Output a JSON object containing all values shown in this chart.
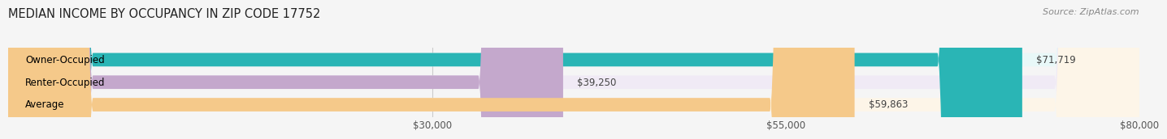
{
  "title": "MEDIAN INCOME BY OCCUPANCY IN ZIP CODE 17752",
  "source": "Source: ZipAtlas.com",
  "categories": [
    "Owner-Occupied",
    "Renter-Occupied",
    "Average"
  ],
  "values": [
    71719,
    39250,
    59863
  ],
  "bar_colors": [
    "#2ab5b5",
    "#c4a8cc",
    "#f5c98a"
  ],
  "bar_bg_colors": [
    "#e8f8f8",
    "#f0eaf5",
    "#fdf5e8"
  ],
  "value_labels": [
    "$71,719",
    "$39,250",
    "$59,863"
  ],
  "xlim": [
    0,
    80000
  ],
  "xticks": [
    30000,
    55000,
    80000
  ],
  "xticklabels": [
    "$30,000",
    "$55,000",
    "$80,000"
  ],
  "bar_height": 0.6,
  "title_fontsize": 10.5,
  "label_fontsize": 8.5,
  "tick_fontsize": 8.5,
  "source_fontsize": 8,
  "background_color": "#f5f5f5"
}
